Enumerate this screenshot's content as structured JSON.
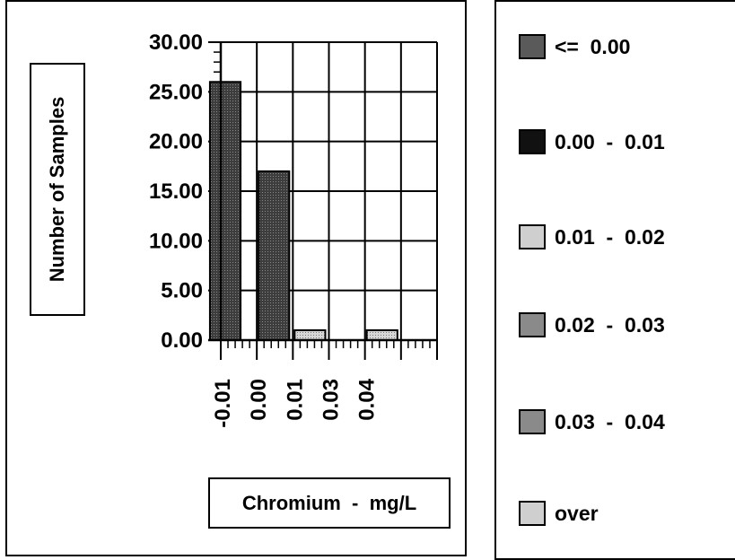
{
  "colors": {
    "bar_dark": "#3d3d3d",
    "bar_light": "#d8d8d8",
    "swatch_dark": "#5a5a5a",
    "swatch_black": "#111111",
    "swatch_light": "#cfcfcf",
    "swatch_mid": "#8a8a8a"
  },
  "chart_data": {
    "type": "bar",
    "ylabel": "Number of Samples",
    "xlabel": "Chromium  -  mg/L",
    "ylim": [
      0,
      30
    ],
    "yticks": [
      "0.00",
      "5.00",
      "10.00",
      "15.00",
      "20.00",
      "25.00",
      "30.00"
    ],
    "categories": [
      "-0.01",
      "0.00",
      "0.01",
      "0.03",
      "0.04",
      ""
    ],
    "values": [
      26,
      17,
      1,
      0,
      1,
      0
    ],
    "grid": true,
    "legend": [
      {
        "label": "<=  0.00",
        "swatch": "dark"
      },
      {
        "label": "0.00  -  0.01",
        "swatch": "black"
      },
      {
        "label": "0.01  -  0.02",
        "swatch": "light"
      },
      {
        "label": "0.02  -  0.03",
        "swatch": "mid"
      },
      {
        "label": "0.03  -  0.04",
        "swatch": "mid"
      },
      {
        "label": "over",
        "swatch": "light"
      }
    ]
  }
}
